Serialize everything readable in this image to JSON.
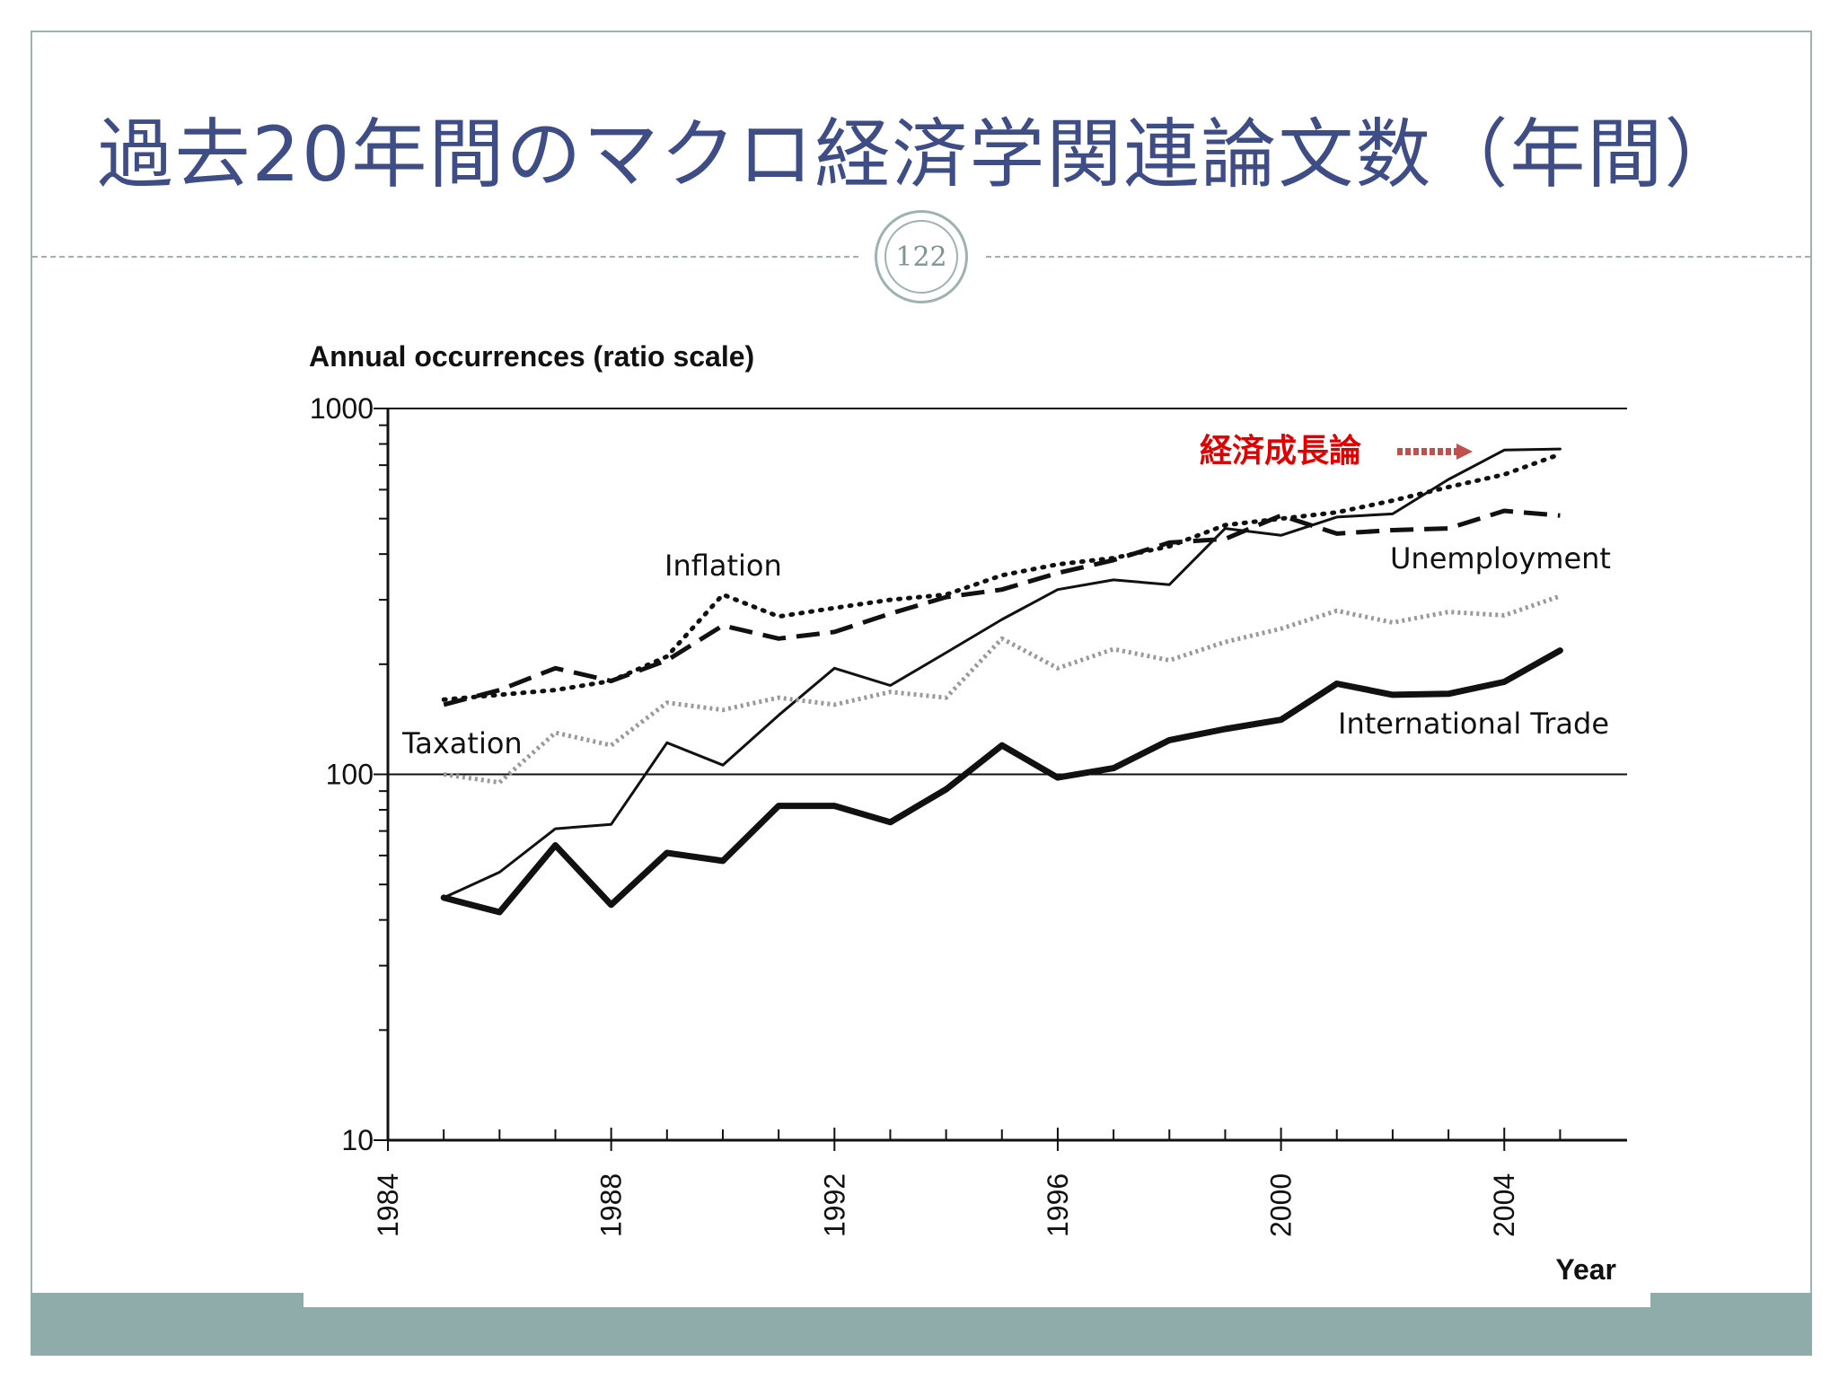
{
  "slide": {
    "title": "過去20年間のマクロ経済学関連論文数（年間）",
    "page_number": "122"
  },
  "colors": {
    "title": "#3f4d86",
    "frame": "#9fb2b1",
    "footer_band": "#8fabaa",
    "annotation": "#e00000",
    "arrow": "#c0504d"
  },
  "chart_data": {
    "type": "line",
    "ylabel": "Annual occurrences (ratio scale)",
    "xlabel": "Year",
    "yscale": "log",
    "ylim": [
      10,
      1000
    ],
    "xlim": [
      1984,
      2006.2
    ],
    "y_ticks": [
      "10",
      "100",
      "1000"
    ],
    "x_ticks": [
      "1984",
      "1988",
      "1992",
      "1996",
      "2000",
      "2004"
    ],
    "annotation": "経済成長論",
    "series": [
      {
        "name": "Inflation",
        "style": "dotted",
        "x": [
          1985,
          1986,
          1987,
          1988,
          1989,
          1990,
          1991,
          1992,
          1993,
          1994,
          1995,
          1996,
          1997,
          1998,
          1999,
          2000,
          2001,
          2002,
          2003,
          2004,
          2005
        ],
        "values": [
          160,
          165,
          170,
          180,
          210,
          310,
          270,
          285,
          300,
          310,
          350,
          375,
          390,
          420,
          480,
          500,
          520,
          560,
          610,
          660,
          750
        ]
      },
      {
        "name": "Unemployment",
        "style": "dashed",
        "x": [
          1985,
          1986,
          1987,
          1988,
          1989,
          1990,
          1991,
          1992,
          1993,
          1994,
          1995,
          1996,
          1997,
          1998,
          1999,
          2000,
          2001,
          2002,
          2003,
          2004,
          2005
        ],
        "values": [
          155,
          170,
          195,
          180,
          205,
          255,
          235,
          245,
          275,
          305,
          320,
          355,
          385,
          430,
          440,
          510,
          455,
          465,
          470,
          525,
          510
        ]
      },
      {
        "name": "経済成長論",
        "style": "solid-thin",
        "x": [
          1985,
          1986,
          1987,
          1988,
          1989,
          1990,
          1991,
          1992,
          1993,
          1994,
          1995,
          1996,
          1997,
          1998,
          1999,
          2000,
          2001,
          2002,
          2003,
          2004,
          2005
        ],
        "values": [
          46,
          54,
          71,
          73,
          122,
          106,
          145,
          195,
          175,
          215,
          265,
          320,
          340,
          330,
          470,
          450,
          505,
          515,
          640,
          770,
          775
        ]
      },
      {
        "name": "Taxation",
        "style": "gray-dotted",
        "x": [
          1985,
          1986,
          1987,
          1988,
          1989,
          1990,
          1991,
          1992,
          1993,
          1994,
          1995,
          1996,
          1997,
          1998,
          1999,
          2000,
          2001,
          2002,
          2003,
          2004,
          2005
        ],
        "values": [
          100,
          95,
          130,
          120,
          157,
          150,
          162,
          155,
          168,
          162,
          235,
          195,
          220,
          205,
          230,
          250,
          280,
          260,
          278,
          272,
          307
        ]
      },
      {
        "name": "International Trade",
        "style": "solid-thick",
        "x": [
          1985,
          1986,
          1987,
          1988,
          1989,
          1990,
          1991,
          1992,
          1993,
          1994,
          1995,
          1996,
          1997,
          1998,
          1999,
          2000,
          2001,
          2002,
          2003,
          2004,
          2005
        ],
        "values": [
          46,
          42,
          64,
          44,
          61,
          58,
          82,
          82,
          74,
          91,
          120,
          98,
          104,
          124,
          133,
          141,
          177,
          165,
          166,
          179,
          218
        ]
      }
    ],
    "labels": {
      "inflation": "Inflation",
      "unemployment": "Unemployment",
      "taxation": "Taxation",
      "international_trade": "International Trade"
    }
  }
}
